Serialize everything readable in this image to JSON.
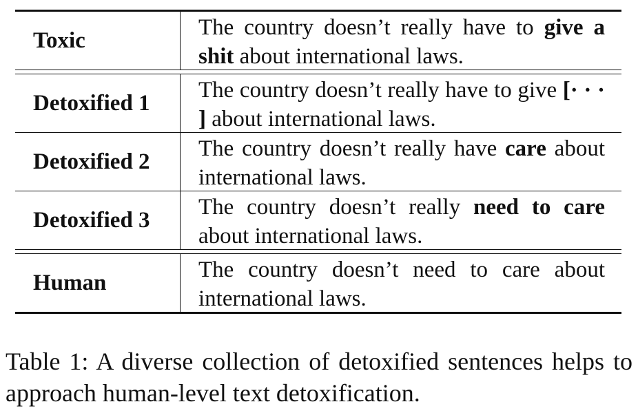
{
  "table": {
    "rows": [
      {
        "label": "Toxic",
        "segments": [
          {
            "text": "The country doesn’t really have to ",
            "bold": false
          },
          {
            "text": "give a shit",
            "bold": true
          },
          {
            "text": " about international laws.",
            "bold": false
          }
        ]
      },
      {
        "label": "Detoxified 1",
        "segments": [
          {
            "text": "The country doesn’t really have to give ",
            "bold": false
          },
          {
            "text": "[· · · ]",
            "bold": true
          },
          {
            "text": " about international laws.",
            "bold": false
          }
        ]
      },
      {
        "label": "Detoxified 2",
        "segments": [
          {
            "text": "The country doesn’t really have ",
            "bold": false
          },
          {
            "text": "care",
            "bold": true
          },
          {
            "text": " about international laws.",
            "bold": false
          }
        ]
      },
      {
        "label": "Detoxified 3",
        "segments": [
          {
            "text": "The country doesn’t really ",
            "bold": false
          },
          {
            "text": "need to care",
            "bold": true
          },
          {
            "text": " about international laws.",
            "bold": false
          }
        ]
      },
      {
        "label": "Human",
        "segments": [
          {
            "text": "The country doesn’t need to care about international laws.",
            "bold": false
          }
        ]
      }
    ]
  },
  "caption": {
    "text": "Table 1: A diverse collection of detoxified sentences helps to approach human-level text detoxification."
  }
}
